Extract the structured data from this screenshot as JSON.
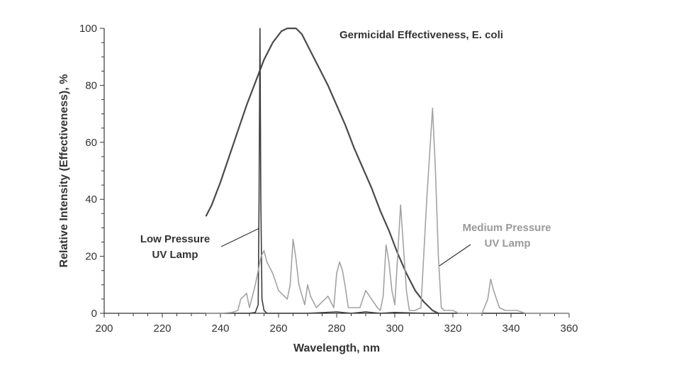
{
  "chart_data": {
    "type": "line",
    "title": "Germicidal Effectiveness, E. coli",
    "xlabel": "Wavelength, nm",
    "ylabel": "Relative Intensity (Effectiveness), %",
    "xlim": [
      200,
      360
    ],
    "ylim": [
      0,
      100
    ],
    "x_ticks": [
      200,
      220,
      240,
      260,
      280,
      300,
      320,
      340,
      360
    ],
    "y_ticks": [
      0,
      20,
      40,
      60,
      80,
      100
    ],
    "grid": false,
    "legend": "none",
    "annotations": {
      "low_pressure": [
        "Low Pressure",
        "UV Lamp"
      ],
      "medium_pressure": [
        "Medium Pressure",
        "UV Lamp"
      ]
    },
    "series": [
      {
        "color": "#4a4a4a",
        "points": [
          [
            235,
            34
          ],
          [
            237,
            38
          ],
          [
            240,
            46
          ],
          [
            243,
            55
          ],
          [
            246,
            64
          ],
          [
            249,
            73
          ],
          [
            252,
            81
          ],
          [
            255,
            89
          ],
          [
            258,
            95
          ],
          [
            261,
            99
          ],
          [
            263,
            100
          ],
          [
            266,
            100
          ],
          [
            268,
            98
          ],
          [
            271,
            92
          ],
          [
            274,
            86
          ],
          [
            277,
            80
          ],
          [
            280,
            73
          ],
          [
            283,
            66
          ],
          [
            286,
            58
          ],
          [
            289,
            51
          ],
          [
            292,
            44
          ],
          [
            295,
            36
          ],
          [
            298,
            29
          ],
          [
            301,
            21
          ],
          [
            304,
            14
          ],
          [
            307,
            8
          ],
          [
            310,
            4
          ],
          [
            313,
            1
          ],
          [
            315,
            0
          ]
        ]
      },
      {
        "color": "#3c3c3c",
        "points": [
          [
            235,
            0
          ],
          [
            250,
            0
          ],
          [
            252,
            0.3
          ],
          [
            253,
            3
          ],
          [
            253.3,
            40
          ],
          [
            253.6,
            100
          ],
          [
            253.9,
            40
          ],
          [
            254.3,
            5
          ],
          [
            255,
            1
          ],
          [
            256,
            0
          ],
          [
            270,
            0
          ],
          [
            280,
            0.5
          ],
          [
            285,
            0
          ],
          [
            290,
            0.5
          ],
          [
            295,
            0
          ],
          [
            300,
            0.3
          ],
          [
            310,
            0
          ],
          [
            360,
            0
          ]
        ]
      },
      {
        "color": "#a3a3a3",
        "points": [
          [
            235,
            0
          ],
          [
            240,
            0
          ],
          [
            244,
            0.3
          ],
          [
            246,
            1
          ],
          [
            247,
            5
          ],
          [
            249,
            7
          ],
          [
            250,
            2
          ],
          [
            252,
            10
          ],
          [
            254,
            20
          ],
          [
            255,
            22
          ],
          [
            256,
            18
          ],
          [
            258,
            14
          ],
          [
            260,
            8
          ],
          [
            262,
            6
          ],
          [
            263,
            5
          ],
          [
            264,
            10
          ],
          [
            265,
            26
          ],
          [
            266,
            19
          ],
          [
            267,
            10
          ],
          [
            269,
            3
          ],
          [
            270,
            10
          ],
          [
            271,
            6
          ],
          [
            272,
            4
          ],
          [
            273,
            2
          ],
          [
            275,
            4
          ],
          [
            277,
            6
          ],
          [
            278,
            4
          ],
          [
            279,
            2
          ],
          [
            280,
            14
          ],
          [
            281,
            18
          ],
          [
            282,
            15
          ],
          [
            283,
            9
          ],
          [
            284,
            2
          ],
          [
            286,
            2
          ],
          [
            288,
            2
          ],
          [
            290,
            8
          ],
          [
            292,
            5
          ],
          [
            294,
            2
          ],
          [
            295,
            1
          ],
          [
            296,
            6
          ],
          [
            297,
            24
          ],
          [
            298,
            18
          ],
          [
            299,
            8
          ],
          [
            300,
            3
          ],
          [
            302,
            38
          ],
          [
            303,
            23
          ],
          [
            304,
            8
          ],
          [
            305,
            1
          ],
          [
            307,
            1
          ],
          [
            309,
            2
          ],
          [
            311,
            40
          ],
          [
            313,
            72
          ],
          [
            314,
            50
          ],
          [
            315,
            20
          ],
          [
            316,
            2
          ],
          [
            317,
            1
          ],
          [
            320,
            1
          ],
          [
            322,
            0
          ],
          [
            330,
            0
          ],
          [
            332,
            5
          ],
          [
            333,
            12
          ],
          [
            334,
            8
          ],
          [
            335,
            5
          ],
          [
            336,
            2
          ],
          [
            338,
            1
          ],
          [
            342,
            1
          ],
          [
            345,
            0
          ],
          [
            360,
            0
          ]
        ]
      }
    ]
  }
}
